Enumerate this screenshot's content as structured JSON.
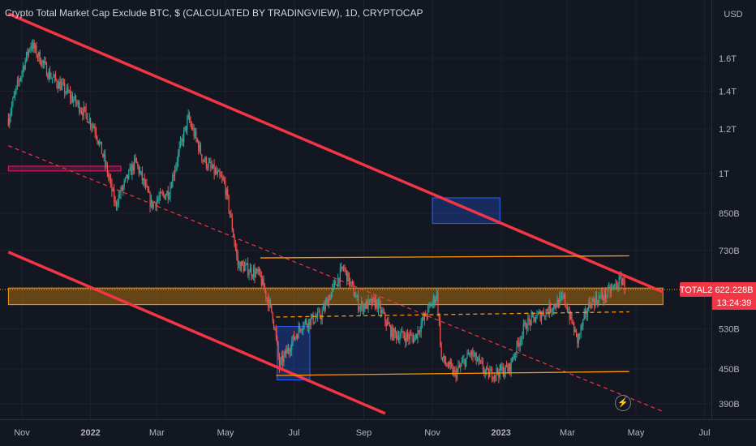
{
  "header": {
    "title": "Crypto Total Market Cap Exclude BTC, $ (CALCULATED BY TRADINGVIEW), 1D, CRYPTOCAP"
  },
  "chart_data": {
    "type": "candlestick",
    "currency_label": "USD",
    "y_ticks": [
      {
        "label": "1.6T",
        "value": 1600
      },
      {
        "label": "1.4T",
        "value": 1400
      },
      {
        "label": "1.2T",
        "value": 1200
      },
      {
        "label": "1T",
        "value": 1000
      },
      {
        "label": "850B",
        "value": 850
      },
      {
        "label": "730B",
        "value": 730
      },
      {
        "label": "530B",
        "value": 530
      },
      {
        "label": "450B",
        "value": 450
      },
      {
        "label": "390B",
        "value": 390
      }
    ],
    "x_ticks": [
      {
        "label": "Nov",
        "date": "2021-11-01",
        "bold": false
      },
      {
        "label": "2022",
        "date": "2022-01-01",
        "bold": true
      },
      {
        "label": "Mar",
        "date": "2022-03-01",
        "bold": false
      },
      {
        "label": "May",
        "date": "2022-05-01",
        "bold": false
      },
      {
        "label": "Jul",
        "date": "2022-07-01",
        "bold": false
      },
      {
        "label": "Sep",
        "date": "2022-09-01",
        "bold": false
      },
      {
        "label": "Nov",
        "date": "2022-11-01",
        "bold": false
      },
      {
        "label": "2023",
        "date": "2023-01-01",
        "bold": true
      },
      {
        "label": "Mar",
        "date": "2023-03-01",
        "bold": false
      },
      {
        "label": "May",
        "date": "2023-05-01",
        "bold": false
      },
      {
        "label": "Jul",
        "date": "2023-07-01",
        "bold": false
      }
    ],
    "price_label": {
      "symbol": "TOTAL2",
      "value": "622.228B",
      "countdown": "13:24:39",
      "price": 622.2
    },
    "close_path": [
      {
        "date": "2021-10-20",
        "close": 1250
      },
      {
        "date": "2021-11-09",
        "close": 1700
      },
      {
        "date": "2021-11-25",
        "close": 1500
      },
      {
        "date": "2021-12-10",
        "close": 1400
      },
      {
        "date": "2021-12-27",
        "close": 1280
      },
      {
        "date": "2022-01-05",
        "close": 1200
      },
      {
        "date": "2022-01-23",
        "close": 880
      },
      {
        "date": "2022-02-10",
        "close": 1050
      },
      {
        "date": "2022-02-24",
        "close": 880
      },
      {
        "date": "2022-03-12",
        "close": 930
      },
      {
        "date": "2022-03-29",
        "close": 1250
      },
      {
        "date": "2022-04-11",
        "close": 1060
      },
      {
        "date": "2022-04-30",
        "close": 960
      },
      {
        "date": "2022-05-12",
        "close": 690
      },
      {
        "date": "2022-05-31",
        "close": 660
      },
      {
        "date": "2022-06-12",
        "close": 560
      },
      {
        "date": "2022-06-18",
        "close": 455
      },
      {
        "date": "2022-07-08",
        "close": 540
      },
      {
        "date": "2022-07-25",
        "close": 560
      },
      {
        "date": "2022-08-14",
        "close": 680
      },
      {
        "date": "2022-08-28",
        "close": 580
      },
      {
        "date": "2022-09-12",
        "close": 590
      },
      {
        "date": "2022-09-26",
        "close": 520
      },
      {
        "date": "2022-10-16",
        "close": 510
      },
      {
        "date": "2022-11-05",
        "close": 610
      },
      {
        "date": "2022-11-09",
        "close": 470
      },
      {
        "date": "2022-11-21",
        "close": 440
      },
      {
        "date": "2022-12-05",
        "close": 480
      },
      {
        "date": "2022-12-20",
        "close": 440
      },
      {
        "date": "2023-01-08",
        "close": 450
      },
      {
        "date": "2023-01-23",
        "close": 540
      },
      {
        "date": "2023-02-10",
        "close": 570
      },
      {
        "date": "2023-02-26",
        "close": 600
      },
      {
        "date": "2023-03-10",
        "close": 505
      },
      {
        "date": "2023-03-21",
        "close": 590
      },
      {
        "date": "2023-04-05",
        "close": 610
      },
      {
        "date": "2023-04-19",
        "close": 650
      },
      {
        "date": "2023-04-21",
        "close": 622
      }
    ],
    "drawings": {
      "descending_channel_upper": {
        "from": {
          "date": "2021-10-20",
          "value": 1920
        },
        "to": {
          "date": "2023-05-25",
          "value": 616
        },
        "color": "#f23645",
        "style": "solid"
      },
      "descending_channel_lower": {
        "from": {
          "date": "2021-10-20",
          "value": 725
        },
        "to": {
          "date": "2022-09-20",
          "value": 375
        },
        "color": "#f23645",
        "style": "solid"
      },
      "descending_midline": {
        "from": {
          "date": "2021-10-20",
          "value": 1120
        },
        "to": {
          "date": "2023-05-25",
          "value": 378
        },
        "color": "#f23645",
        "style": "dashed"
      },
      "range_top": {
        "from": {
          "date": "2022-06-01",
          "value": 708
        },
        "to": {
          "date": "2023-04-25",
          "value": 714
        },
        "color": "#ff9800",
        "style": "solid"
      },
      "range_mid_dashed": {
        "from": {
          "date": "2022-06-15",
          "value": 556
        },
        "to": {
          "date": "2023-04-25",
          "value": 568
        },
        "color": "#ff9800",
        "style": "dashed"
      },
      "range_bottom": {
        "from": {
          "date": "2022-06-15",
          "value": 438
        },
        "to": {
          "date": "2023-04-25",
          "value": 445
        },
        "color": "#ff9800",
        "style": "solid"
      },
      "support_zone": {
        "from_date": "2021-10-20",
        "to_date": "2023-05-25",
        "top": 626,
        "bottom": 585,
        "color": "#ff9800"
      },
      "pink_zone": {
        "from_date": "2021-10-20",
        "to_date": "2022-01-28",
        "top": 1030,
        "bottom": 1010,
        "color": "#e91e63"
      },
      "target_box": {
        "from_date": "2022-11-01",
        "to_date": "2022-12-31",
        "top": 905,
        "bottom": 815,
        "color": "#2962ff"
      },
      "bottom_box": {
        "from_date": "2022-06-16",
        "to_date": "2022-07-15",
        "top": 535,
        "bottom": 430,
        "color": "#2962ff"
      }
    }
  }
}
